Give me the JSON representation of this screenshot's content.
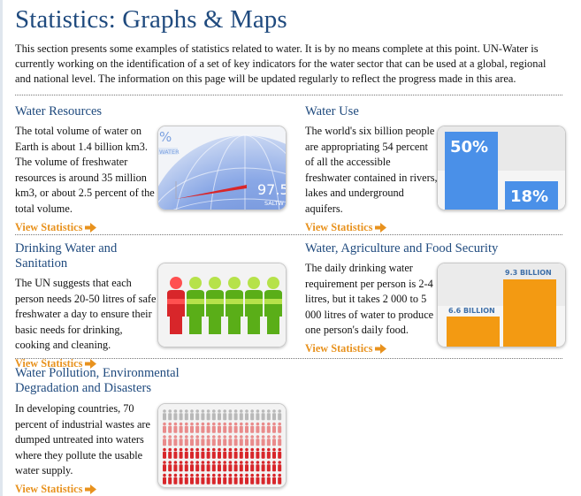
{
  "page": {
    "title": "Statistics: Graphs & Maps",
    "intro": "This section presents some examples of statistics related to water. It is by no means complete at this point. UN-Water is currently working on the identification of a set of key indicators for the water sector that can be used at a global, regional and national level. The information on this page will be updated regularly to reflect the progress made in this area."
  },
  "link_label": "View Statistics",
  "colors": {
    "title": "#1f4a7e",
    "link": "#e8921e",
    "accent_blue": "#4a90e8",
    "accent_orange": "#f39a12",
    "red": "#d8262a",
    "green": "#6fbf22"
  },
  "sections": {
    "water_resources": {
      "title": "Water Resources",
      "text": "The total volume of water on Earth is about 1.4 billion km3. The volume of freshwater resources is  around 35 million km3, or about 2.5 percent of the total volume.",
      "thumb": {
        "top_pct": "%",
        "top_label": "WATER",
        "big_value": "97.5",
        "big_label": "SALTW"
      }
    },
    "water_use": {
      "title": "Water Use",
      "text": "The world's six billion people are appropriating 54 percent of all the accessible freshwater contained in rivers, lakes and underground aquifers.",
      "thumb": {
        "values": [
          50,
          18
        ],
        "labels": [
          "50%",
          "18%"
        ]
      }
    },
    "drinking_water": {
      "title": "Drinking Water and Sanitation",
      "text": "The UN suggests that each person needs 20-50 litres of safe freshwater a day to ensure their basic needs for drinking, cooking and cleaning.",
      "thumb": {
        "figures": [
          "red",
          "green",
          "green",
          "green",
          "green",
          "green"
        ],
        "icon": "person-icon"
      }
    },
    "water_agriculture": {
      "title": "Water, Agriculture and Food Security",
      "text": "The daily drinking water requirement per person is 2-4 litres, but it takes 2 000 to 5 000 litres of water to produce one person's daily food.",
      "thumb": {
        "values": [
          6.6,
          9.3
        ],
        "labels": [
          "6.6 BILLION",
          "9.3 BILLION"
        ]
      }
    },
    "water_pollution": {
      "title_line1": "Water Pollution, Environmental",
      "title_line2": "Degradation and Disasters",
      "text": "In developing countries, 70 percent of industrial wastes are dumped untreated into waters where they pollute the usable water supply.",
      "thumb": {
        "rows": [
          "grey",
          "red-light",
          "red-light",
          "red",
          "red",
          "red"
        ],
        "icon": "person-icon"
      }
    }
  }
}
